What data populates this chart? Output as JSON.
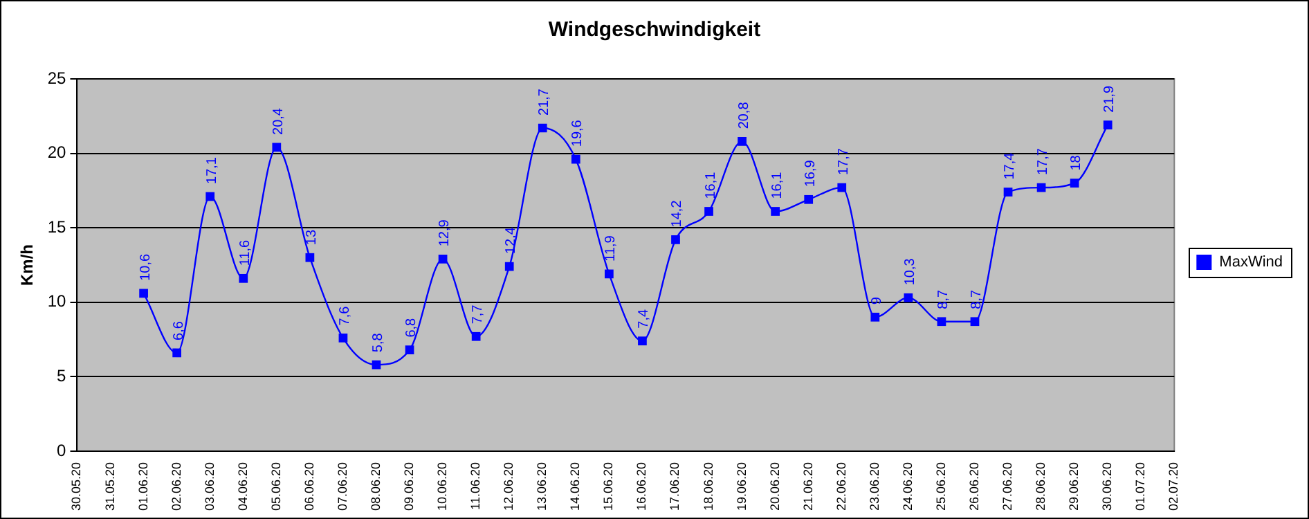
{
  "chart_data": {
    "type": "line",
    "title": "Windgeschwindigkeit",
    "ylabel": "Km/h",
    "categories": [
      "30.05.20",
      "31.05.20",
      "01.06.20",
      "02.06.20",
      "03.06.20",
      "04.06.20",
      "05.06.20",
      "06.06.20",
      "07.06.20",
      "08.06.20",
      "09.06.20",
      "10.06.20",
      "11.06.20",
      "12.06.20",
      "13.06.20",
      "14.06.20",
      "15.06.20",
      "16.06.20",
      "17.06.20",
      "18.06.20",
      "19.06.20",
      "20.06.20",
      "21.06.20",
      "22.06.20",
      "23.06.20",
      "24.06.20",
      "25.06.20",
      "26.06.20",
      "27.06.20",
      "28.06.20",
      "29.06.20",
      "30.06.20",
      "01.07.20",
      "02.07.20"
    ],
    "series": [
      {
        "name": "MaxWind",
        "color": "#0000ff",
        "values": [
          null,
          null,
          10.6,
          6.6,
          17.1,
          11.6,
          20.4,
          13,
          7.6,
          5.8,
          6.8,
          12.9,
          7.7,
          12.4,
          21.7,
          19.6,
          11.9,
          7.4,
          14.2,
          16.1,
          20.8,
          16.1,
          16.9,
          17.7,
          9,
          10.3,
          8.7,
          8.7,
          17.4,
          17.7,
          18,
          21.9,
          null,
          null
        ],
        "value_labels": [
          null,
          null,
          "10,6",
          "6,6",
          "17,1",
          "11,6",
          "20,4",
          "13",
          "7,6",
          "5,8",
          "6,8",
          "12,9",
          "7,7",
          "12,4",
          "21,7",
          "19,6",
          "11,9",
          "7,4",
          "14,2",
          "16,1",
          "20,8",
          "16,1",
          "16,9",
          "17,7",
          "9",
          "10,3",
          "8,7",
          "8,7",
          "17,4",
          "17,7",
          "18",
          "21,9",
          null,
          null
        ]
      }
    ],
    "ylim": [
      0,
      25
    ],
    "yticks": [
      0,
      5,
      10,
      15,
      20,
      25
    ],
    "grid": "y",
    "legend": "right",
    "marker": "square",
    "line_style": "solid"
  }
}
